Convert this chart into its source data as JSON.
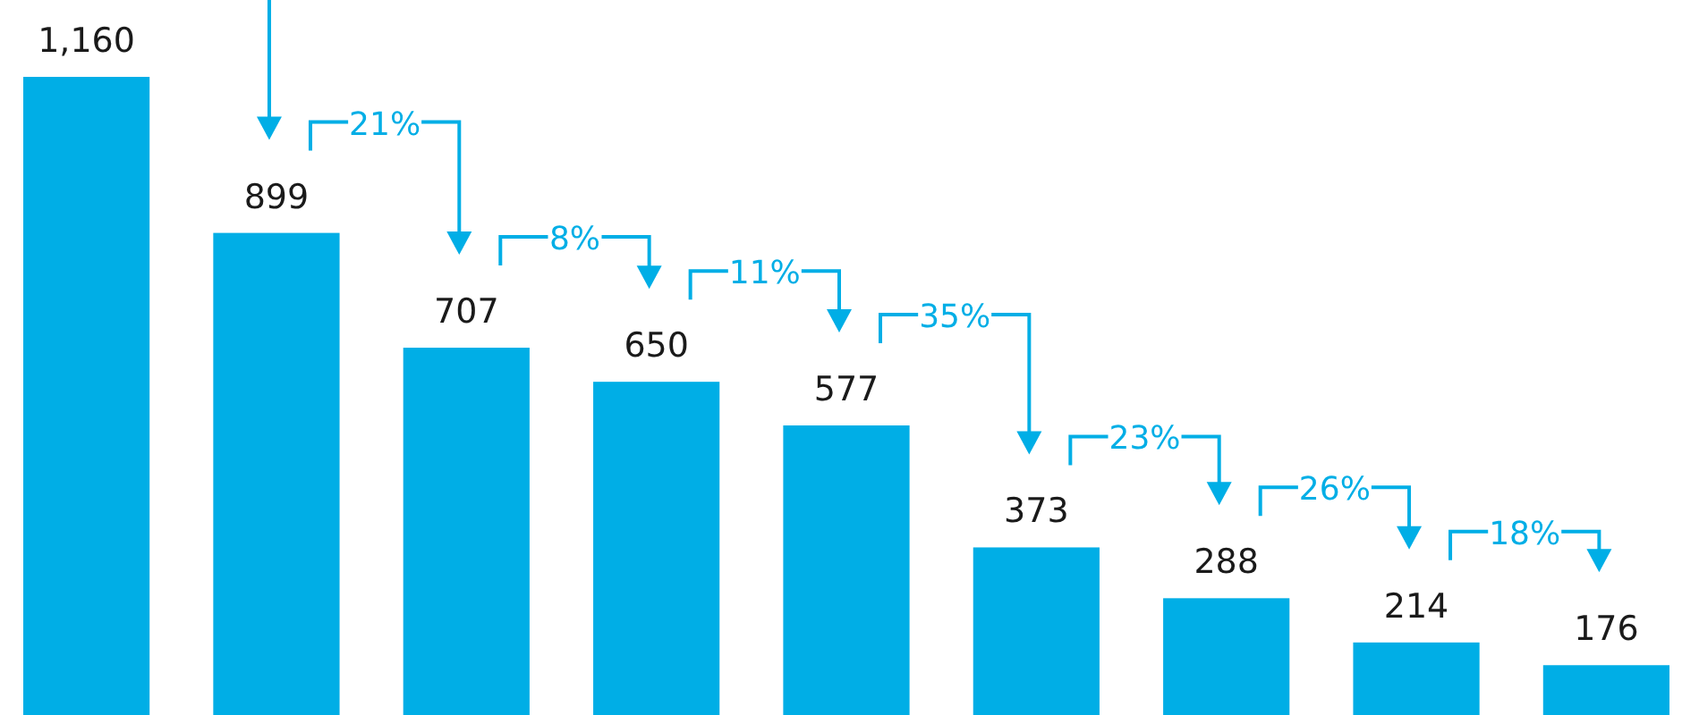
{
  "chart_data": {
    "type": "bar",
    "categories": [
      null,
      null,
      null,
      null,
      null,
      null,
      null,
      null,
      null
    ],
    "values": [
      1160,
      899,
      707,
      650,
      577,
      373,
      288,
      214,
      176
    ],
    "color": "#00aee6",
    "value_labels": [
      "1,160",
      "899",
      "707",
      "650",
      "577",
      "373",
      "288",
      "214",
      "176"
    ],
    "annotations": [
      "21%",
      "8%",
      "11%",
      "35%",
      "23%",
      "26%",
      "18%"
    ]
  }
}
